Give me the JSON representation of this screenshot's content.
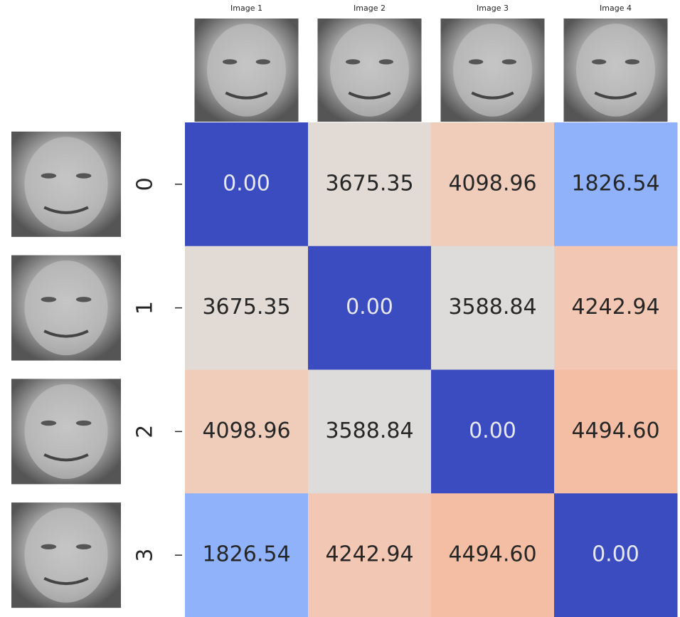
{
  "chart_data": {
    "type": "heatmap",
    "x_categories": [
      "Image 1",
      "Image 2",
      "Image 3",
      "Image 4"
    ],
    "y_categories": [
      "0",
      "1",
      "2",
      "3"
    ],
    "values": [
      [
        0,
        3675.35,
        4098.96,
        1826.54
      ],
      [
        3675.35,
        0,
        3588.84,
        4242.94
      ],
      [
        4098.96,
        3588.84,
        0,
        4494.6
      ],
      [
        1826.54,
        4242.94,
        4494.6,
        0
      ]
    ],
    "value_labels": [
      [
        "0.00",
        "3675.35",
        "4098.96",
        "1826.54"
      ],
      [
        "3675.35",
        "0.00",
        "3588.84",
        "4242.94"
      ],
      [
        "4098.96",
        "3588.84",
        "0.00",
        "4494.60"
      ],
      [
        "1826.54",
        "4242.94",
        "4494.60",
        "0.00"
      ]
    ],
    "colormap": "coolwarm"
  }
}
